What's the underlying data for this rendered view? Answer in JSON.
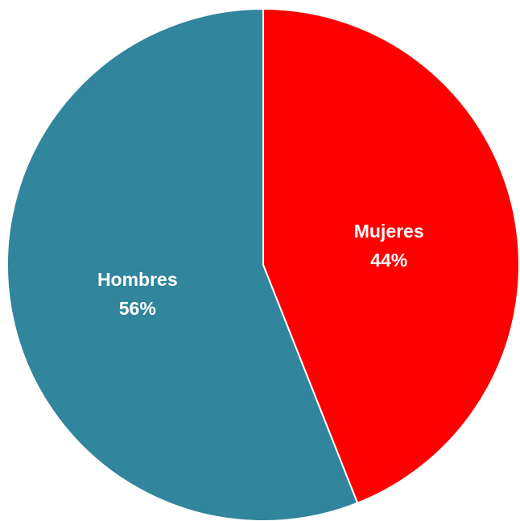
{
  "chart_data": {
    "type": "pie",
    "title": "",
    "slices": [
      {
        "label": "Mujeres",
        "value": 44,
        "value_label": "44%",
        "color": "#ff0000"
      },
      {
        "label": "Hombres",
        "value": 56,
        "value_label": "56%",
        "color": "#31859c"
      }
    ],
    "start_angle_deg": 0,
    "direction": "clockwise",
    "legend": "none",
    "data_labels": "inside"
  }
}
